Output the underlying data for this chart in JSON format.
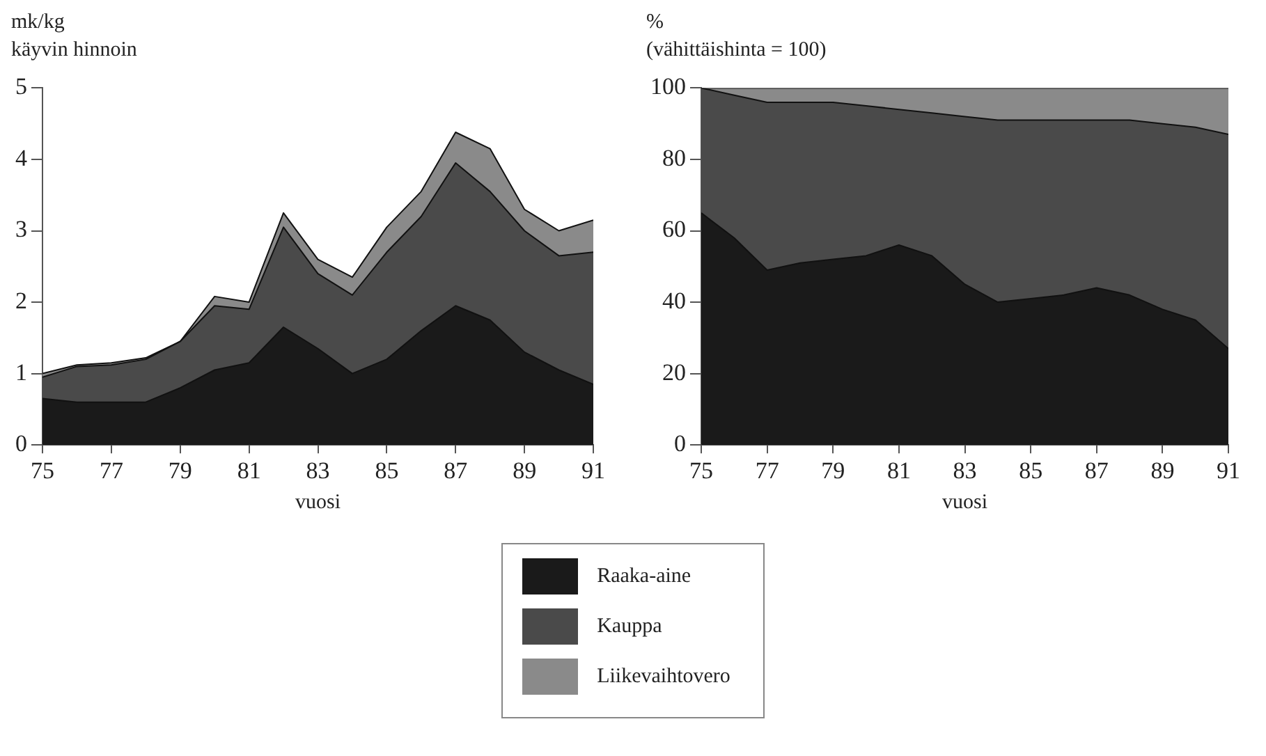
{
  "chart_data": [
    {
      "type": "area",
      "title": "mk/kg",
      "subtitle": "käyvin hinnoin",
      "xlabel": "vuosi",
      "stacked": true,
      "legend": "bottom",
      "x": [
        75,
        76,
        77,
        78,
        79,
        80,
        81,
        82,
        83,
        84,
        85,
        86,
        87,
        88,
        89,
        90,
        91
      ],
      "xlim": [
        75,
        91
      ],
      "xticks": [
        75,
        77,
        79,
        81,
        83,
        85,
        87,
        89,
        91
      ],
      "ylim": [
        0,
        5
      ],
      "yticks": [
        0,
        1,
        2,
        3,
        4,
        5
      ],
      "series": [
        {
          "name": "Raaka-aine",
          "color": "#1a1a1a",
          "values": [
            0.65,
            0.6,
            0.6,
            0.6,
            0.8,
            1.05,
            1.15,
            1.65,
            1.35,
            1.0,
            1.2,
            1.6,
            1.95,
            1.75,
            1.3,
            1.05,
            0.85
          ]
        },
        {
          "name": "Kauppa",
          "color": "#4a4a4a",
          "values": [
            0.3,
            0.5,
            0.52,
            0.6,
            0.65,
            0.9,
            0.75,
            1.4,
            1.05,
            1.1,
            1.5,
            1.6,
            2.0,
            1.8,
            1.7,
            1.6,
            1.85
          ]
        },
        {
          "name": "Liikevaihtovero",
          "color": "#8a8a8a",
          "values": [
            0.05,
            0.02,
            0.03,
            0.02,
            0,
            0.13,
            0.1,
            0.2,
            0.2,
            0.25,
            0.35,
            0.35,
            0.43,
            0.6,
            0.3,
            0.35,
            0.45
          ]
        }
      ]
    },
    {
      "type": "area",
      "title": "%",
      "subtitle": "(vähittäishinta = 100)",
      "xlabel": "vuosi",
      "stacked": true,
      "x": [
        75,
        76,
        77,
        78,
        79,
        80,
        81,
        82,
        83,
        84,
        85,
        86,
        87,
        88,
        89,
        90,
        91
      ],
      "xlim": [
        75,
        91
      ],
      "xticks": [
        75,
        77,
        79,
        81,
        83,
        85,
        87,
        89,
        91
      ],
      "ylim": [
        0,
        100
      ],
      "yticks": [
        0,
        20,
        40,
        60,
        80,
        100
      ],
      "series": [
        {
          "color": "#1a1a1a",
          "values": [
            65,
            58,
            49,
            51,
            52,
            53,
            56,
            53,
            45,
            40,
            41,
            42,
            44,
            42,
            38,
            35,
            27
          ]
        },
        {
          "color": "#4a4a4a",
          "values": [
            35,
            40,
            47,
            45,
            44,
            42,
            38,
            40,
            47,
            51,
            50,
            49,
            47,
            49,
            52,
            54,
            60
          ]
        },
        {
          "color": "#8a8a8a",
          "values": [
            0,
            2,
            4,
            4,
            4,
            5,
            6,
            7,
            8,
            9,
            9,
            9,
            9,
            9,
            10,
            11,
            13
          ]
        }
      ]
    }
  ]
}
